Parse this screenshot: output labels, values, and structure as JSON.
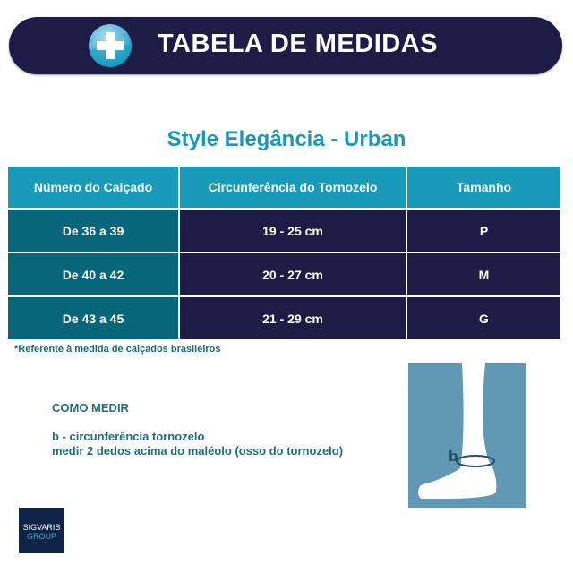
{
  "header": {
    "title": "TABELA DE MEDIDAS",
    "icon": "plus-icon"
  },
  "subtitle": "Style Elegância - Urban",
  "table": {
    "columns": [
      "Número do Calçado",
      "Circunferência do Tornozelo",
      "Tamanho"
    ],
    "rows": [
      [
        "De 36 a 39",
        "19 - 25 cm",
        "P"
      ],
      [
        "De 40 a 42",
        "20 - 27 cm",
        "M"
      ],
      [
        "De 43 a 45",
        "21 - 29 cm",
        "G"
      ]
    ]
  },
  "note": "*Referente à medida de calçados brasileiros",
  "how": {
    "heading": "COMO MEDIR",
    "line1": "b - circunferência tornozelo",
    "line2": "medir 2 dedos acima do maléolo (osso do tornozelo)"
  },
  "diagram": {
    "label": "b"
  },
  "logo": {
    "line1": "SIGVARIS",
    "line2": "GROUP"
  },
  "colors": {
    "navy": "#1c1c47",
    "teal_header": "#189ab8",
    "teal_dark": "#08667a",
    "title": "#1a97b8"
  }
}
